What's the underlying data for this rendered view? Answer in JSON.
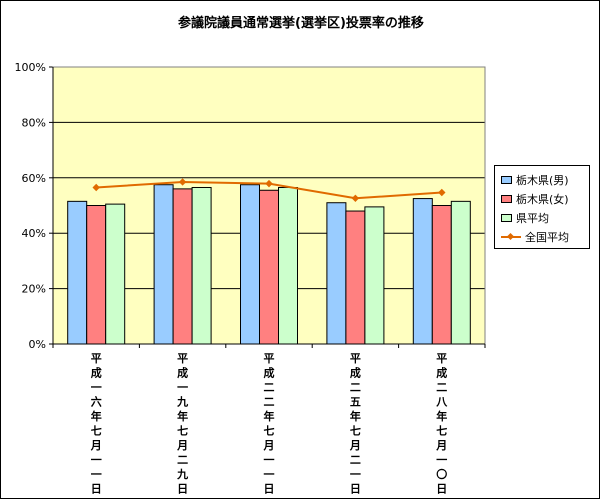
{
  "chart_data": {
    "type": "bar",
    "title": "参議院議員通常選挙(選挙区)投票率の推移",
    "categories": [
      "平成一六年七月一一日",
      "平成一九年七月二九日",
      "平成二二年七月一一日",
      "平成二五年七月二一日",
      "平成二八年七月一〇日"
    ],
    "series": [
      {
        "name": "栃木県(男)",
        "type": "bar",
        "color": "#99ccff",
        "values": [
          51.5,
          57.5,
          57.5,
          51.0,
          52.5
        ]
      },
      {
        "name": "栃木県(女)",
        "type": "bar",
        "color": "#ff8080",
        "values": [
          50.0,
          56.0,
          55.5,
          48.0,
          50.0
        ]
      },
      {
        "name": "県平均",
        "type": "bar",
        "color": "#ccffcc",
        "values": [
          50.5,
          56.5,
          56.5,
          49.5,
          51.5
        ]
      },
      {
        "name": "全国平均",
        "type": "line",
        "color": "#e06a00",
        "values": [
          56.5,
          58.5,
          57.9,
          52.6,
          54.7
        ]
      }
    ],
    "ylim": [
      0,
      100
    ],
    "yticks": [
      "0%",
      "20%",
      "40%",
      "60%",
      "80%",
      "100%"
    ],
    "grid": true,
    "legend": "right",
    "plot_background": "#ffffc0"
  }
}
